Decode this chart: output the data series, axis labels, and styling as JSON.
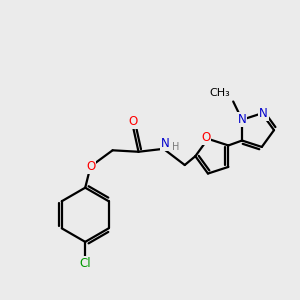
{
  "bg_color": "#ebebeb",
  "bond_color": "#000000",
  "bond_width": 1.6,
  "atom_colors": {
    "O": "#ff0000",
    "N": "#0000cc",
    "Cl": "#009900",
    "H": "#7a7a7a",
    "C": "#000000"
  },
  "font_size": 8.5,
  "methyl_label": "CH₃"
}
